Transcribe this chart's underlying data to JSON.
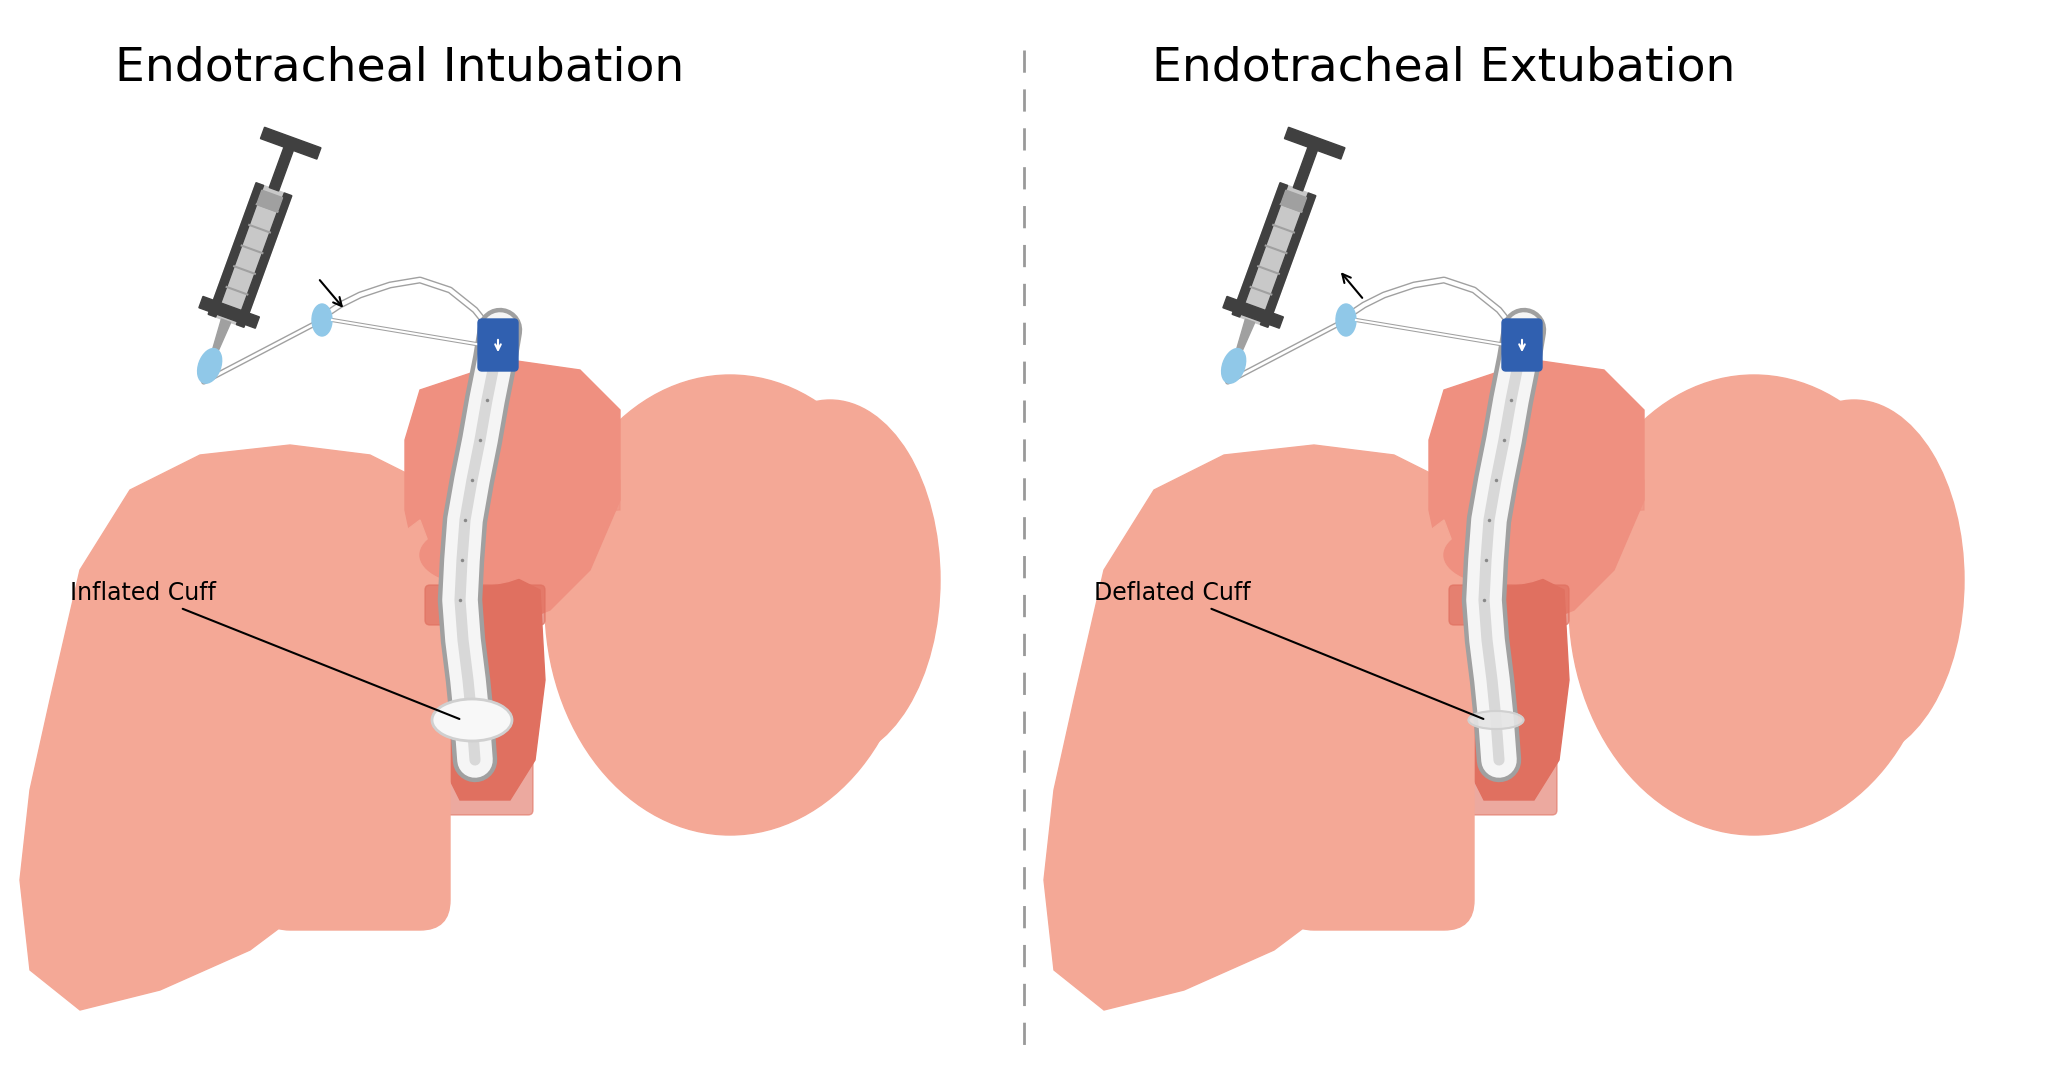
{
  "title_left": "Endotracheal Intubation",
  "title_right": "Endotracheal Extubation",
  "label_left": "Inflated Cuff",
  "label_right": "Deflated Cuff",
  "bg_color": "#ffffff",
  "skin_light": "#F4A896",
  "skin_medium": "#EF9080",
  "skin_dark": "#E07060",
  "throat_inner": "#E87878",
  "tube_white": "#f5f5f5",
  "tube_gray": "#c8c8c8",
  "tube_dark": "#a0a0a0",
  "cuff_white": "#f8f8f8",
  "cuff_gray": "#d0d0d0",
  "syringe_body_light": "#c8c8c8",
  "syringe_body_mid": "#a0a0a0",
  "syringe_dark": "#404040",
  "syringe_plunger_light": "#e0e0e0",
  "pilot_blue": "#90c8e8",
  "connector_blue": "#3060b0",
  "divider_color": "#999999",
  "title_fontsize": 34,
  "label_fontsize": 17
}
